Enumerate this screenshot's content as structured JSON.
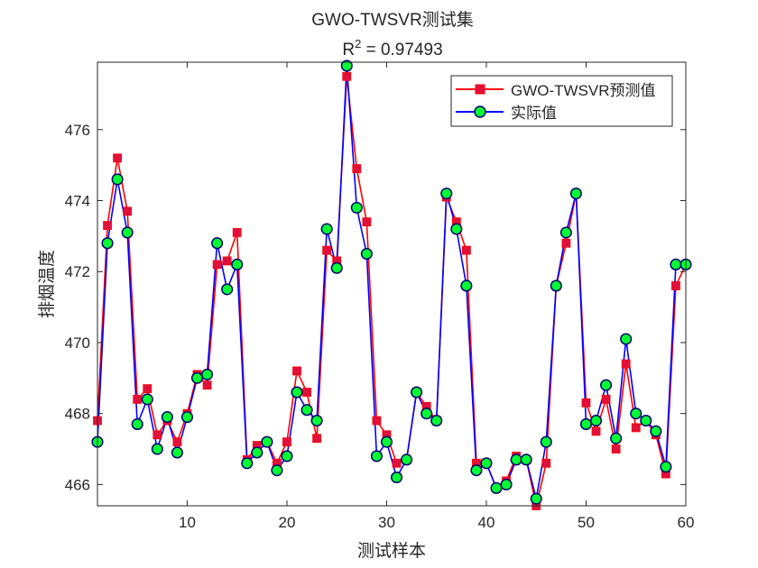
{
  "chart_data": {
    "type": "line",
    "title": "GWO-TWSVR测试集",
    "subtitle_prefix": "R",
    "subtitle_sup": "2",
    "subtitle_value": " = 0.97493",
    "xlabel": "测试样本",
    "ylabel": "排烟温度",
    "xlim": [
      1,
      60
    ],
    "ylim": [
      465.4,
      477.9
    ],
    "xticks": [
      10,
      20,
      30,
      40,
      50,
      60
    ],
    "yticks": [
      466,
      468,
      470,
      472,
      474,
      476
    ],
    "grid": false,
    "legend_position": "top-right",
    "series": [
      {
        "name": "GWO-TWSVR预测值",
        "color": "#ff0000",
        "marker": "square",
        "marker_color": "#e0103c",
        "values": [
          467.8,
          473.3,
          475.2,
          473.7,
          468.4,
          468.7,
          467.4,
          467.8,
          467.2,
          468.0,
          469.1,
          468.8,
          472.2,
          472.3,
          473.1,
          466.7,
          467.1,
          467.2,
          466.6,
          467.2,
          469.2,
          468.6,
          467.3,
          472.6,
          472.3,
          477.5,
          474.9,
          473.4,
          467.8,
          467.4,
          466.6,
          466.7,
          468.6,
          468.2,
          467.8,
          474.1,
          473.4,
          472.6,
          466.6,
          466.6,
          465.9,
          466.1,
          466.8,
          466.7,
          465.4,
          466.6,
          471.6,
          472.8,
          474.2,
          468.3,
          467.5,
          468.4,
          467.0,
          469.4,
          467.6,
          467.8,
          467.4,
          466.3,
          471.6,
          472.2
        ]
      },
      {
        "name": "实际值",
        "color": "#0000ff",
        "marker": "circle",
        "marker_color": "#00ff33",
        "values": [
          467.2,
          472.8,
          474.6,
          473.1,
          467.7,
          468.4,
          467.0,
          467.9,
          466.9,
          467.9,
          469.0,
          469.1,
          472.8,
          471.5,
          472.2,
          466.6,
          466.9,
          467.2,
          466.4,
          466.8,
          468.6,
          468.1,
          467.8,
          473.2,
          472.1,
          477.8,
          473.8,
          472.5,
          466.8,
          467.2,
          466.2,
          466.7,
          468.6,
          468.0,
          467.8,
          474.2,
          473.2,
          471.6,
          466.4,
          466.6,
          465.9,
          466.0,
          466.7,
          466.7,
          465.6,
          467.2,
          471.6,
          473.1,
          474.2,
          467.7,
          467.8,
          468.8,
          467.3,
          470.1,
          468.0,
          467.8,
          467.5,
          466.5,
          472.2,
          472.2
        ]
      }
    ]
  }
}
